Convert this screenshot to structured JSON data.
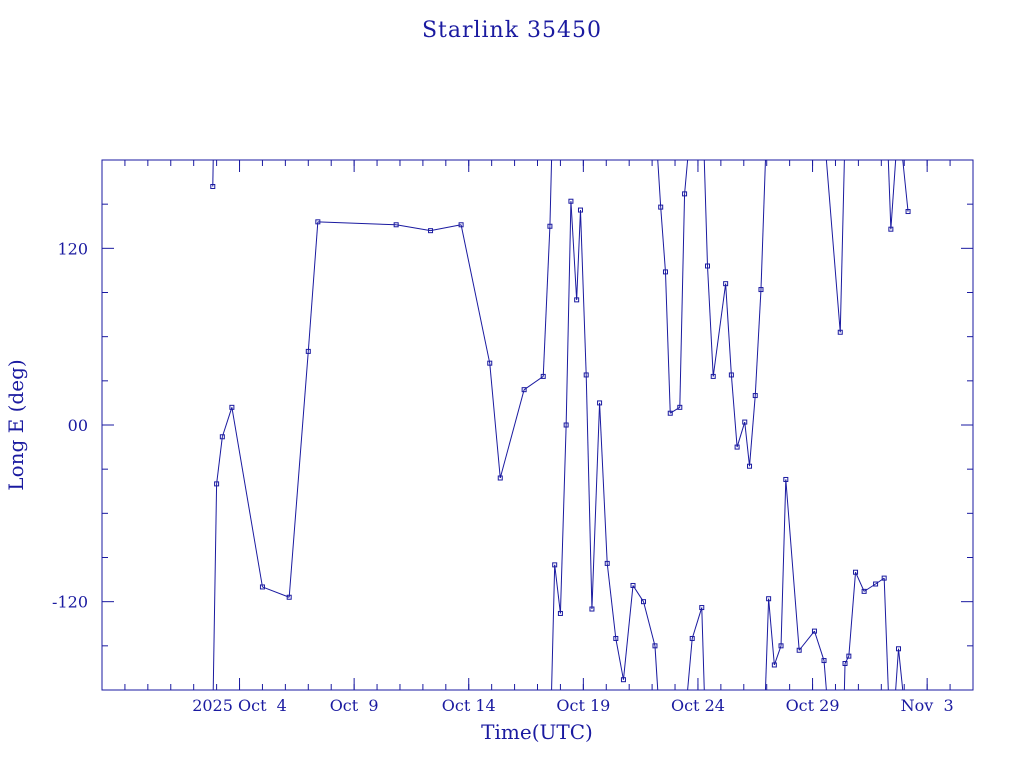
{
  "chart_data": {
    "type": "line",
    "title": "Starlink 35450",
    "xlabel": "Time(UTC)",
    "ylabel": "Long E (deg)",
    "color": "#1a1aa0",
    "background": "#ffffff",
    "x_axis": {
      "type": "date",
      "range": [
        "2025-09-28",
        "2025-11-05"
      ],
      "tick_labels": [
        {
          "date": "2025-10-04",
          "label": "2025 Oct  4"
        },
        {
          "date": "2025-10-09",
          "label": "Oct  9"
        },
        {
          "date": "2025-10-14",
          "label": "Oct 14"
        },
        {
          "date": "2025-10-19",
          "label": "Oct 19"
        },
        {
          "date": "2025-10-24",
          "label": "Oct 24"
        },
        {
          "date": "2025-10-29",
          "label": "Oct 29"
        },
        {
          "date": "2025-11-03",
          "label": "Nov  3"
        }
      ]
    },
    "y_axis": {
      "range": [
        -180,
        180
      ],
      "tick_labels": [
        {
          "value": -120,
          "label": "-120"
        },
        {
          "value": 0,
          "label": "00"
        },
        {
          "value": 120,
          "label": "120"
        }
      ]
    },
    "grid": false,
    "markers": "small squares",
    "series": [
      {
        "x": [
          "2025-10-02T20:00",
          "2025-10-03T00:00",
          "2025-10-03T06:00",
          "2025-10-03T16:00",
          "2025-10-05T00:00",
          "2025-10-06T04:00",
          "2025-10-07T00:00",
          "2025-10-07T10:00",
          "2025-10-10T20:00",
          "2025-10-12T08:00",
          "2025-10-13T16:00",
          "2025-10-14T22:00",
          "2025-10-15T09:00",
          "2025-10-16T10:00",
          "2025-10-17T06:00",
          "2025-10-17T13:00",
          "2025-10-17T18:00",
          "2025-10-18T00:00",
          "2025-10-18T06:00",
          "2025-10-18T11:00",
          "2025-10-18T17:00",
          "2025-10-18T21:00",
          "2025-10-19T03:00",
          "2025-10-19T09:00",
          "2025-10-19T17:00",
          "2025-10-20T01:00",
          "2025-10-20T10:00",
          "2025-10-20T18:00",
          "2025-10-21T04:00",
          "2025-10-21T15:00",
          "2025-10-22T03:00",
          "2025-10-22T09:00",
          "2025-10-22T14:00",
          "2025-10-22T19:00",
          "2025-10-23T05:00",
          "2025-10-23T10:00",
          "2025-10-23T18:00",
          "2025-10-24T04:00",
          "2025-10-24T10:00",
          "2025-10-24T16:00",
          "2025-10-25T05:00",
          "2025-10-25T11:00",
          "2025-10-25T17:00",
          "2025-10-26T01:00",
          "2025-10-26T06:00",
          "2025-10-26T12:00",
          "2025-10-26T18:00",
          "2025-10-27T02:00",
          "2025-10-27T08:00",
          "2025-10-27T15:00",
          "2025-10-27T20:00",
          "2025-10-28T10:00",
          "2025-10-29T02:00",
          "2025-10-29T12:00",
          "2025-10-30T05:00",
          "2025-10-30T10:00",
          "2025-10-30T14:00",
          "2025-10-30T21:00",
          "2025-10-31T06:00",
          "2025-10-31T18:00",
          "2025-11-01T03:00",
          "2025-11-01T10:00",
          "2025-11-01T18:00",
          "2025-11-02T04:00"
        ],
        "y": [
          162,
          -40,
          -8,
          12,
          -110,
          -117,
          50,
          138,
          136,
          132,
          136,
          42,
          -36,
          24,
          33,
          135,
          -95,
          -128,
          0,
          152,
          85,
          146,
          34,
          -125,
          15,
          -94,
          -145,
          -173,
          -109,
          -120,
          -150,
          148,
          104,
          8,
          12,
          157,
          -145,
          -124,
          108,
          33,
          96,
          34,
          -15,
          2,
          -28,
          20,
          92,
          -118,
          -163,
          -150,
          -37,
          -153,
          -140,
          -160,
          63,
          -162,
          -157,
          -100,
          -113,
          -108,
          -104,
          133,
          -152,
          145
        ]
      }
    ]
  }
}
